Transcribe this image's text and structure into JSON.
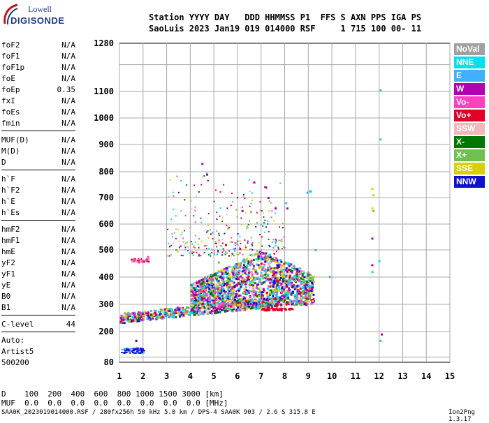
{
  "logo": {
    "line1": "Lowell",
    "line2": "DIGISONDE"
  },
  "header": {
    "row1": "Station YYYY DAY   DDD HHMMSS P1  FFS S AXN PPS IGA PS",
    "row2": "SaoLuis 2023 Jan19 019 014000 RSF     1 715 100 00- 11"
  },
  "params": [
    {
      "name": "foF2",
      "value": "N/A"
    },
    {
      "name": "foF1",
      "value": "N/A"
    },
    {
      "name": "foF1p",
      "value": "N/A"
    },
    {
      "name": "foE",
      "value": "N/A"
    },
    {
      "name": "foEp",
      "value": "0.35"
    },
    {
      "name": "fxI",
      "value": "N/A"
    },
    {
      "name": "foEs",
      "value": "N/A"
    },
    {
      "name": "fmin",
      "value": "N/A"
    },
    {
      "name": "MUF(D)",
      "value": "N/A"
    },
    {
      "name": "M(D)",
      "value": "N/A"
    },
    {
      "name": "D",
      "value": "N/A"
    },
    {
      "name": "h`F",
      "value": "N/A"
    },
    {
      "name": "h`F2",
      "value": "N/A"
    },
    {
      "name": "h`E",
      "value": "N/A"
    },
    {
      "name": "h`Es",
      "value": "N/A"
    },
    {
      "name": "hmF2",
      "value": "N/A"
    },
    {
      "name": "hmF1",
      "value": "N/A"
    },
    {
      "name": "hmE",
      "value": "N/A"
    },
    {
      "name": "yF2",
      "value": "N/A"
    },
    {
      "name": "yF1",
      "value": "N/A"
    },
    {
      "name": "yE",
      "value": "N/A"
    },
    {
      "name": "B0",
      "value": "N/A"
    },
    {
      "name": "B1",
      "value": "N/A"
    },
    {
      "name": "C-level",
      "value": "44"
    }
  ],
  "autoscale": {
    "line1": "Auto:",
    "line2": "Artist5",
    "line3": "500200"
  },
  "legend": [
    {
      "label": "NoVal",
      "color": "#a0a0a0"
    },
    {
      "label": "NNE",
      "color": "#00e0f0"
    },
    {
      "label": "E",
      "color": "#40b0ff"
    },
    {
      "label": "W",
      "color": "#b000b0"
    },
    {
      "label": "Vo-",
      "color": "#ff40c0"
    },
    {
      "label": "Vo+",
      "color": "#e00028"
    },
    {
      "label": "SSW",
      "color": "#f0b8b8"
    },
    {
      "label": "X-",
      "color": "#007800"
    },
    {
      "label": "X+",
      "color": "#70c050"
    },
    {
      "label": "SSE",
      "color": "#d8d000"
    },
    {
      "label": "NNW",
      "color": "#1010d0"
    }
  ],
  "mufTable": {
    "dRow": "D    100  200  400  600  800 1000 1500 3000 [km]",
    "mufRow": "MUF  0.0  0.0  0.0  0.0  0.0  0.0  0.0  0.0 [MHz]"
  },
  "footer": "SAA0K_2023019014000.RSF / 280fx256h 50 kHz 5.0 km / DPS-4 SAA0K 903 / 2.6 S 315.8 E",
  "version": "Ion2Png 1.3.17",
  "chart_data": {
    "type": "scatter",
    "title": "",
    "xlabel": "",
    "ylabel": "",
    "xlim": [
      1,
      15
    ],
    "ylim": [
      80,
      1280
    ],
    "xticks": [
      1,
      2,
      3,
      4,
      5,
      6,
      7,
      8,
      9,
      10,
      11,
      12,
      13,
      14,
      15
    ],
    "yticks": [
      80,
      200,
      300,
      400,
      500,
      600,
      700,
      800,
      900,
      1000,
      1100,
      1280
    ],
    "grid": true,
    "y_scale": "virtual-height (nonlinear, compressed at top)",
    "series": [
      {
        "legend": "E",
        "points": [
          [
            12.05,
            1105
          ],
          [
            12.05,
            920
          ],
          [
            12.05,
            165
          ],
          [
            8.95,
            720
          ],
          [
            9.1,
            725
          ],
          [
            8.05,
            680
          ],
          [
            9.3,
            500
          ],
          [
            9.9,
            402
          ]
        ]
      },
      {
        "legend": "NNE",
        "points": [
          [
            9.05,
            725
          ],
          [
            11.7,
            420
          ],
          [
            12.0,
            460
          ]
        ]
      },
      {
        "legend": "SSE",
        "points": [
          [
            11.7,
            735
          ],
          [
            11.75,
            710
          ],
          [
            11.7,
            660
          ],
          [
            5.1,
            400
          ],
          [
            6.2,
            290
          ],
          [
            7.4,
            420
          ]
        ]
      },
      {
        "legend": "W",
        "points": [
          [
            4.5,
            830
          ],
          [
            4.7,
            790
          ],
          [
            6.7,
            760
          ],
          [
            7.2,
            740
          ],
          [
            7.3,
            700
          ],
          [
            8.1,
            660
          ],
          [
            6.2,
            650
          ],
          [
            7.6,
            660
          ],
          [
            12.1,
            190
          ],
          [
            11.7,
            545
          ],
          [
            11.7,
            445
          ]
        ]
      },
      {
        "legend": "NNW",
        "points": [
          [
            1.2,
            233
          ],
          [
            1.5,
            238
          ],
          [
            1.8,
            240
          ],
          [
            1.3,
            130
          ],
          [
            1.6,
            128
          ],
          [
            1.9,
            130
          ],
          [
            1.7,
            165
          ],
          [
            5.1,
            280
          ],
          [
            6.0,
            290
          ]
        ]
      },
      {
        "legend": "Vo+",
        "points": [
          [
            7.5,
            280
          ],
          [
            7.8,
            285
          ],
          [
            8.2,
            282
          ],
          [
            5.5,
            520
          ],
          [
            6.1,
            505
          ],
          [
            7.0,
            450
          ],
          [
            8.2,
            400
          ]
        ]
      },
      {
        "legend": "Vo-",
        "points": [
          [
            1.6,
            460
          ],
          [
            2.2,
            475
          ],
          [
            7.0,
            380
          ],
          [
            8.6,
            390
          ]
        ]
      },
      {
        "legend": "X+",
        "points": [
          [
            11.75,
            650
          ],
          [
            3.4,
            500
          ],
          [
            5.2,
            455
          ]
        ]
      }
    ]
  }
}
